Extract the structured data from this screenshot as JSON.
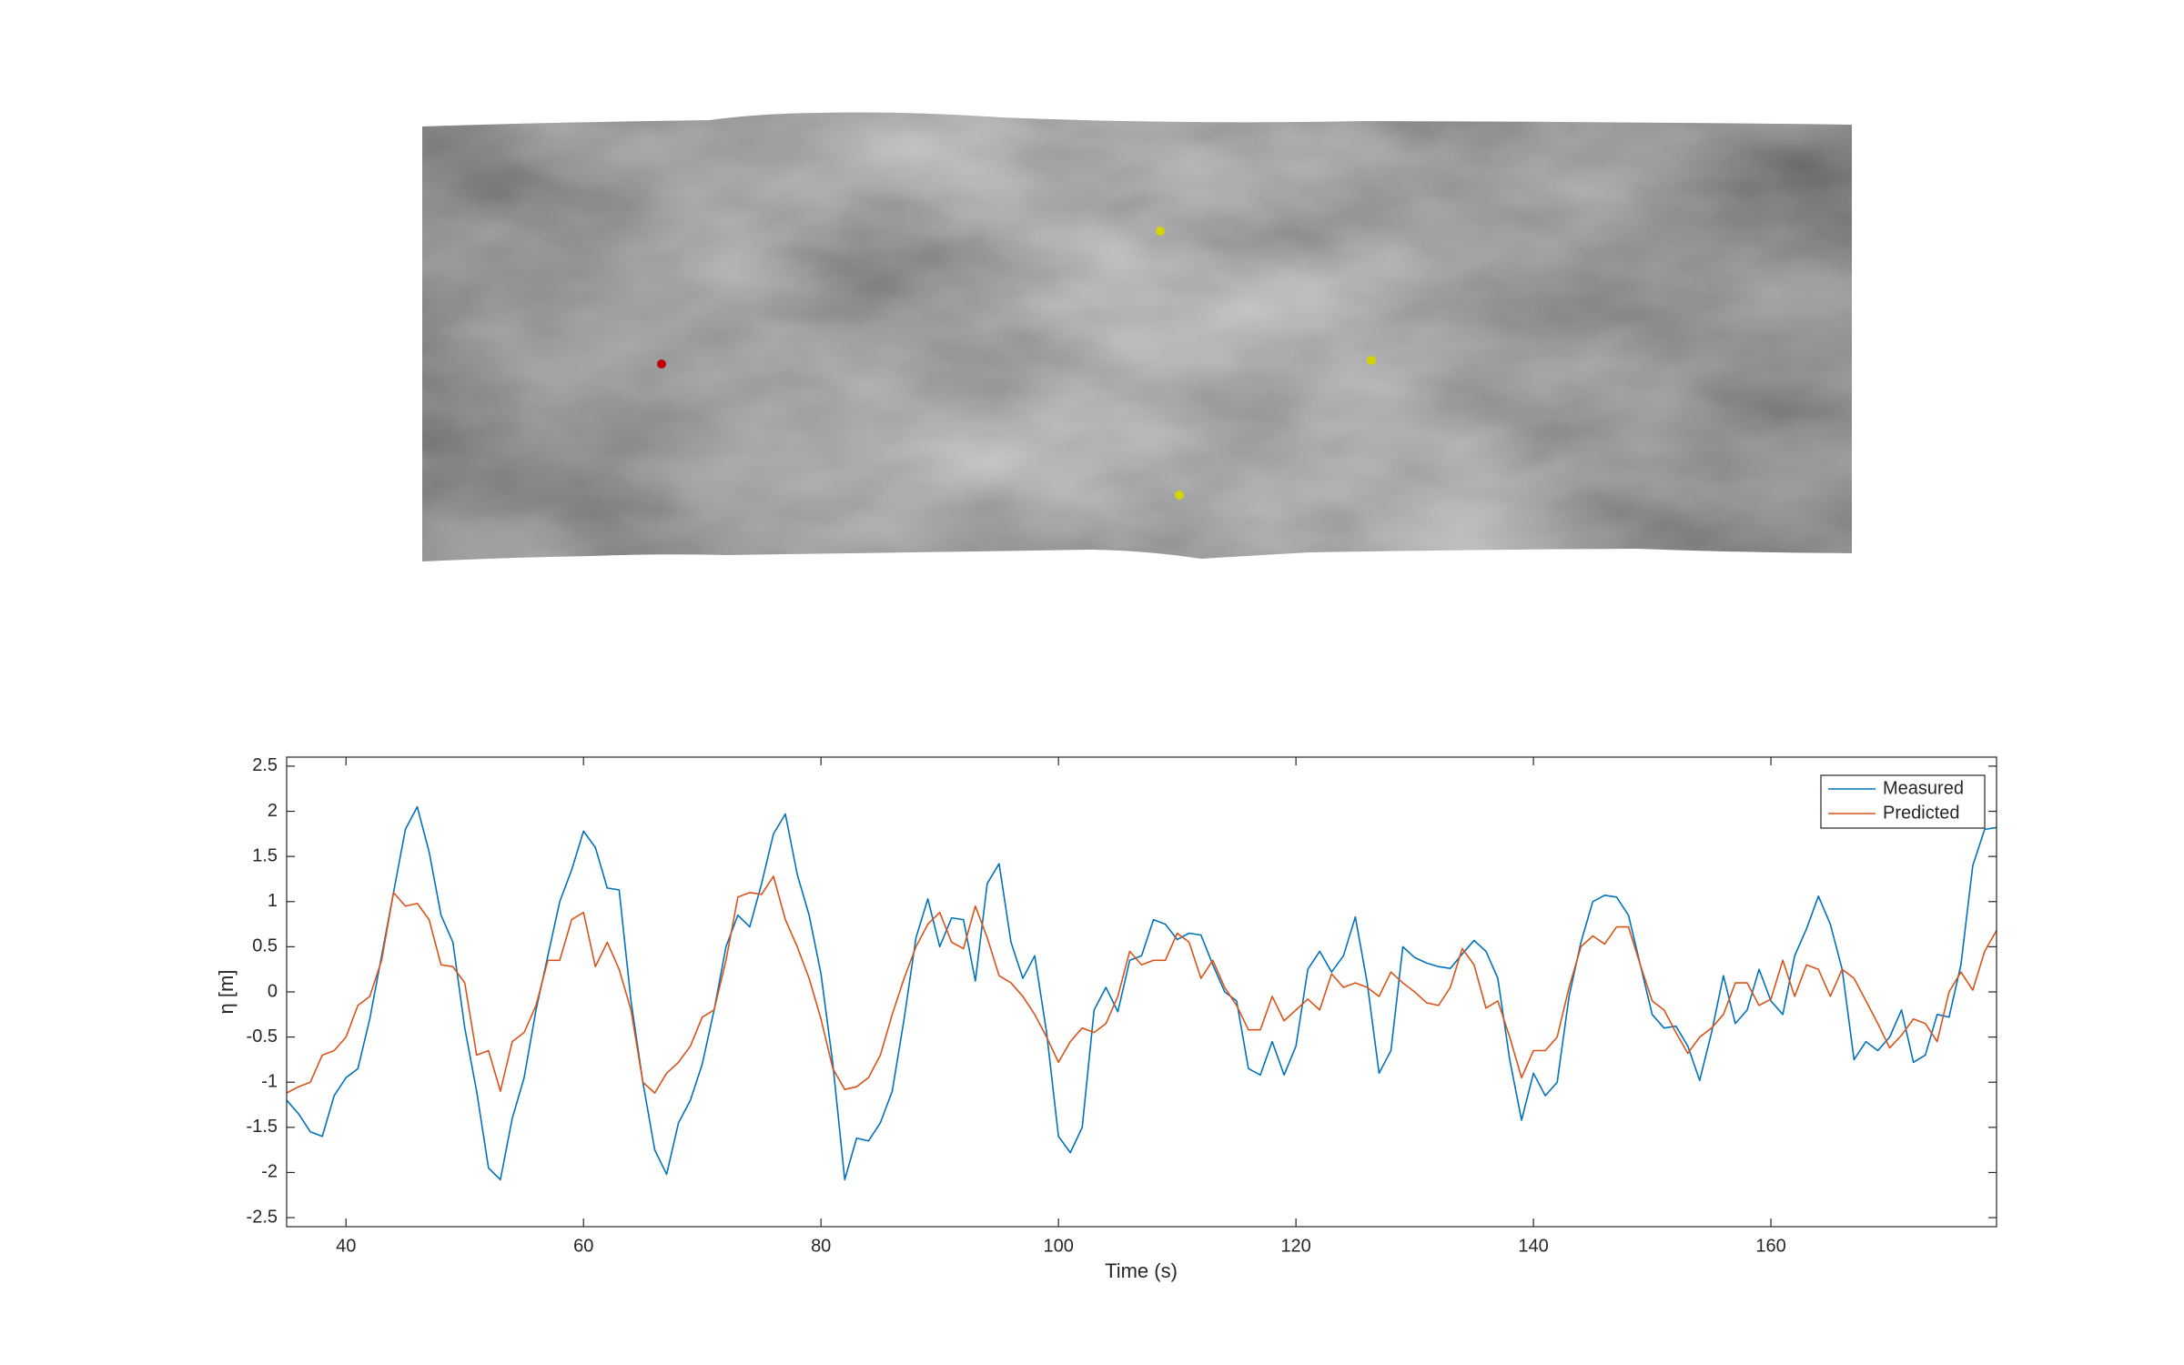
{
  "chart_data": {
    "type": "line",
    "xlabel": "Time (s)",
    "ylabel": "η [m]",
    "x": [
      35,
      36,
      37,
      38,
      39,
      40,
      41,
      42,
      43,
      44,
      45,
      46,
      47,
      48,
      49,
      50,
      51,
      52,
      53,
      54,
      55,
      56,
      57,
      58,
      59,
      60,
      61,
      62,
      63,
      64,
      65,
      66,
      67,
      68,
      69,
      70,
      71,
      72,
      73,
      74,
      75,
      76,
      77,
      78,
      79,
      80,
      81,
      82,
      83,
      84,
      85,
      86,
      87,
      88,
      89,
      90,
      91,
      92,
      93,
      94,
      95,
      96,
      97,
      98,
      99,
      100,
      101,
      102,
      103,
      104,
      105,
      106,
      107,
      108,
      109,
      110,
      111,
      112,
      113,
      114,
      115,
      116,
      117,
      118,
      119,
      120,
      121,
      122,
      123,
      124,
      125,
      126,
      127,
      128,
      129,
      130,
      131,
      132,
      133,
      134,
      135,
      136,
      137,
      138,
      139,
      140,
      141,
      142,
      143,
      144,
      145,
      146,
      147,
      148,
      149,
      150,
      151,
      152,
      153,
      154,
      155,
      156,
      157,
      158,
      159,
      160,
      161,
      162,
      163,
      164,
      165,
      166,
      167,
      168,
      169,
      170,
      171,
      172,
      173,
      174,
      175,
      176,
      177,
      178,
      179
    ],
    "series": [
      {
        "name": "Measured",
        "color": "#0072bd",
        "values": [
          -1.2,
          -1.35,
          -1.55,
          -1.6,
          -1.15,
          -0.95,
          -0.85,
          -0.3,
          0.4,
          1.1,
          1.8,
          2.05,
          1.55,
          0.85,
          0.55,
          -0.4,
          -1.1,
          -1.95,
          -2.08,
          -1.4,
          -0.95,
          -0.2,
          0.4,
          1.0,
          1.35,
          1.78,
          1.6,
          1.15,
          1.13,
          -0.1,
          -1.0,
          -1.75,
          -2.02,
          -1.45,
          -1.2,
          -0.8,
          -0.2,
          0.5,
          0.85,
          0.72,
          1.2,
          1.75,
          1.97,
          1.3,
          0.85,
          0.2,
          -0.8,
          -2.08,
          -1.62,
          -1.65,
          -1.45,
          -1.1,
          -0.3,
          0.6,
          1.03,
          0.5,
          0.82,
          0.8,
          0.12,
          1.2,
          1.42,
          0.55,
          0.15,
          0.4,
          -0.45,
          -1.6,
          -1.78,
          -1.5,
          -0.2,
          0.05,
          -0.22,
          0.35,
          0.4,
          0.8,
          0.75,
          0.58,
          0.65,
          0.63,
          0.3,
          0.0,
          -0.1,
          -0.85,
          -0.92,
          -0.55,
          -0.92,
          -0.6,
          0.25,
          0.45,
          0.22,
          0.4,
          0.83,
          0.1,
          -0.9,
          -0.65,
          0.5,
          0.38,
          0.32,
          0.28,
          0.26,
          0.42,
          0.57,
          0.45,
          0.15,
          -0.75,
          -1.42,
          -0.9,
          -1.15,
          -1.0,
          -0.05,
          0.55,
          1.0,
          1.07,
          1.05,
          0.85,
          0.3,
          -0.25,
          -0.4,
          -0.38,
          -0.6,
          -0.98,
          -0.45,
          0.18,
          -0.35,
          -0.2,
          0.25,
          -0.1,
          -0.25,
          0.4,
          0.7,
          1.06,
          0.75,
          0.25,
          -0.75,
          -0.55,
          -0.65,
          -0.5,
          -0.2,
          -0.78,
          -0.7,
          -0.25,
          -0.28,
          0.3,
          1.4,
          1.8,
          1.82
        ]
      },
      {
        "name": "Predicted",
        "color": "#d95319",
        "values": [
          -1.12,
          -1.05,
          -1.0,
          -0.7,
          -0.65,
          -0.5,
          -0.15,
          -0.05,
          0.35,
          1.1,
          0.95,
          0.98,
          0.8,
          0.3,
          0.28,
          0.1,
          -0.7,
          -0.65,
          -1.1,
          -0.55,
          -0.45,
          -0.15,
          0.35,
          0.35,
          0.8,
          0.88,
          0.28,
          0.55,
          0.25,
          -0.2,
          -1.0,
          -1.12,
          -0.9,
          -0.78,
          -0.6,
          -0.28,
          -0.2,
          0.35,
          1.05,
          1.1,
          1.08,
          1.28,
          0.8,
          0.5,
          0.15,
          -0.3,
          -0.85,
          -1.08,
          -1.05,
          -0.95,
          -0.7,
          -0.25,
          0.15,
          0.5,
          0.75,
          0.88,
          0.55,
          0.48,
          0.95,
          0.6,
          0.18,
          0.1,
          -0.05,
          -0.25,
          -0.5,
          -0.78,
          -0.55,
          -0.4,
          -0.45,
          -0.35,
          -0.05,
          0.45,
          0.3,
          0.35,
          0.35,
          0.65,
          0.55,
          0.15,
          0.35,
          0.05,
          -0.15,
          -0.42,
          -0.42,
          -0.05,
          -0.32,
          -0.2,
          -0.08,
          -0.2,
          0.2,
          0.05,
          0.1,
          0.05,
          -0.05,
          0.22,
          0.1,
          0.0,
          -0.12,
          -0.15,
          0.05,
          0.48,
          0.3,
          -0.18,
          -0.1,
          -0.5,
          -0.95,
          -0.65,
          -0.65,
          -0.5,
          0.05,
          0.5,
          0.62,
          0.53,
          0.72,
          0.72,
          0.3,
          -0.1,
          -0.2,
          -0.45,
          -0.68,
          -0.5,
          -0.4,
          -0.25,
          0.1,
          0.1,
          -0.15,
          -0.08,
          0.35,
          -0.05,
          0.3,
          0.25,
          -0.05,
          0.25,
          0.15,
          -0.1,
          -0.35,
          -0.62,
          -0.48,
          -0.3,
          -0.35,
          -0.55,
          0.0,
          0.22,
          0.02,
          0.45,
          0.68
        ]
      }
    ],
    "xlim": [
      35,
      179
    ],
    "ylim": [
      -2.6,
      2.6
    ],
    "xticks": [
      40,
      60,
      80,
      100,
      120,
      140,
      160
    ],
    "yticks": [
      -2.5,
      -2,
      -1.5,
      -1,
      -0.5,
      0,
      0.5,
      1,
      1.5,
      2,
      2.5
    ],
    "legend": "northeast"
  }
}
